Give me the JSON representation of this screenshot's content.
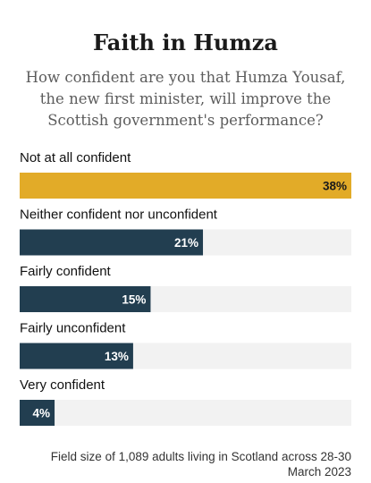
{
  "chart_data": {
    "type": "bar",
    "orientation": "horizontal",
    "title": "Faith in Humza",
    "subtitle": [
      "How confident are you that Humza Yousaf,",
      "the new first minister, will improve the",
      "Scottish government's performance?"
    ],
    "categories": [
      "Not at all confident",
      "Neither confident nor unconfident",
      "Fairly confident",
      "Fairly unconfident",
      "Very confident"
    ],
    "values": [
      38,
      21,
      15,
      13,
      4
    ],
    "value_labels": [
      "38%",
      "21%",
      "15%",
      "13%",
      "4%"
    ],
    "unit": "%",
    "xlim": [
      0,
      38
    ],
    "grid": false,
    "colors": {
      "highlight": "#e2ab28",
      "bar": "#223e50",
      "track": "#f2f2f2",
      "highlight_label": "#1a1a1a",
      "bar_label": "#ffffff"
    },
    "footnote": [
      "Field size of 1,089 adults living in Scotland across 28-30",
      "March 2023"
    ]
  }
}
